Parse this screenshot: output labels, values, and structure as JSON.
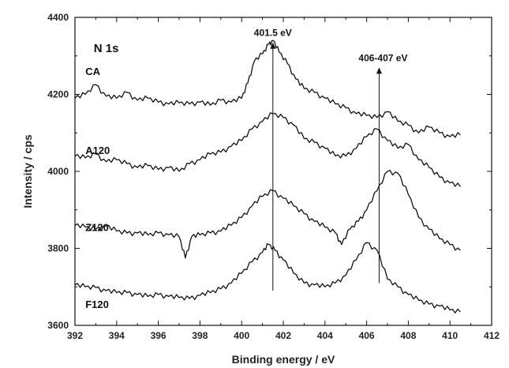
{
  "chart_data": {
    "type": "line",
    "panel_label": "N 1s",
    "xlabel": "Binding energy / eV",
    "ylabel": "Intensity / cps",
    "xlim": [
      392,
      412
    ],
    "ylim": [
      3600,
      4400
    ],
    "xticks": [
      392,
      394,
      396,
      398,
      400,
      402,
      404,
      406,
      408,
      410,
      412
    ],
    "yticks": [
      3600,
      3800,
      4000,
      4200,
      4400
    ],
    "grid": false,
    "line_color": "#111111",
    "annotations": [
      {
        "label": "401.5 eV",
        "x": 401.5,
        "y_from": 3690,
        "y_to": 4335
      },
      {
        "label": "406-407 eV",
        "x": 406.6,
        "y_from": 3710,
        "y_to": 4270
      }
    ],
    "series": [
      {
        "name": "CA",
        "label_pos": [
          392.5,
          4250
        ],
        "x": [
          392.0,
          392.5,
          393.0,
          393.5,
          394.0,
          394.5,
          395.0,
          395.5,
          396.0,
          396.5,
          397.0,
          397.5,
          398.0,
          398.5,
          399.0,
          399.5,
          400.0,
          400.3,
          400.6,
          401.0,
          401.3,
          401.5,
          401.8,
          402.2,
          402.6,
          403.0,
          403.5,
          404.0,
          404.5,
          405.0,
          405.5,
          406.0,
          406.5,
          407.0,
          407.5,
          408.0,
          408.5,
          409.0,
          409.5,
          410.0,
          410.5
        ],
        "y": [
          4190,
          4200,
          4225,
          4195,
          4190,
          4205,
          4185,
          4190,
          4180,
          4175,
          4178,
          4175,
          4180,
          4172,
          4185,
          4180,
          4190,
          4230,
          4285,
          4305,
          4330,
          4340,
          4310,
          4280,
          4240,
          4215,
          4205,
          4190,
          4175,
          4165,
          4150,
          4145,
          4140,
          4155,
          4130,
          4120,
          4100,
          4115,
          4100,
          4090,
          4095
        ]
      },
      {
        "name": "A120",
        "label_pos": [
          392.5,
          4045
        ],
        "x": [
          392.0,
          392.5,
          393.0,
          393.5,
          394.0,
          394.5,
          395.0,
          395.5,
          396.0,
          396.5,
          397.0,
          397.5,
          398.0,
          398.5,
          399.0,
          399.5,
          400.0,
          400.5,
          401.0,
          401.5,
          402.0,
          402.5,
          403.0,
          403.5,
          404.0,
          404.5,
          405.0,
          405.5,
          406.0,
          406.5,
          407.0,
          407.5,
          408.0,
          408.5,
          409.0,
          409.5,
          410.0,
          410.5
        ],
        "y": [
          4040,
          4035,
          4045,
          4025,
          4030,
          4020,
          4010,
          4015,
          4005,
          4010,
          4000,
          4020,
          4030,
          4045,
          4050,
          4065,
          4080,
          4110,
          4130,
          4150,
          4140,
          4120,
          4085,
          4075,
          4060,
          4040,
          4040,
          4060,
          4090,
          4110,
          4080,
          4060,
          4070,
          4030,
          4010,
          3985,
          3970,
          3960
        ]
      },
      {
        "name": "Z120",
        "label_pos": [
          392.5,
          3845
        ],
        "x": [
          392.0,
          392.5,
          393.0,
          393.5,
          394.0,
          394.5,
          395.0,
          395.5,
          396.0,
          396.5,
          397.0,
          397.3,
          397.6,
          398.0,
          398.5,
          399.0,
          399.5,
          400.0,
          400.5,
          401.0,
          401.5,
          402.0,
          402.5,
          403.0,
          403.5,
          404.0,
          404.5,
          404.8,
          405.2,
          405.6,
          406.0,
          406.5,
          407.0,
          407.5,
          408.0,
          408.5,
          409.0,
          409.5,
          410.0,
          410.5
        ],
        "y": [
          3860,
          3855,
          3850,
          3858,
          3845,
          3840,
          3840,
          3835,
          3840,
          3835,
          3830,
          3775,
          3830,
          3835,
          3840,
          3845,
          3860,
          3880,
          3910,
          3935,
          3950,
          3930,
          3910,
          3890,
          3870,
          3855,
          3840,
          3810,
          3850,
          3870,
          3900,
          3950,
          4000,
          3995,
          3940,
          3880,
          3850,
          3825,
          3810,
          3795
        ]
      },
      {
        "name": "F120",
        "label_pos": [
          392.5,
          3645
        ],
        "x": [
          392.0,
          392.5,
          393.0,
          393.5,
          394.0,
          394.5,
          395.0,
          395.5,
          396.0,
          396.5,
          397.0,
          397.5,
          398.0,
          398.5,
          399.0,
          399.5,
          400.0,
          400.5,
          401.0,
          401.3,
          401.6,
          402.0,
          402.5,
          403.0,
          403.5,
          404.0,
          404.5,
          405.0,
          405.5,
          406.0,
          406.5,
          407.0,
          407.5,
          408.0,
          408.5,
          409.0,
          409.5,
          410.0,
          410.5
        ],
        "y": [
          3705,
          3700,
          3698,
          3690,
          3685,
          3685,
          3680,
          3675,
          3680,
          3675,
          3672,
          3670,
          3678,
          3685,
          3695,
          3710,
          3735,
          3765,
          3790,
          3810,
          3795,
          3770,
          3735,
          3710,
          3705,
          3700,
          3710,
          3730,
          3770,
          3815,
          3795,
          3720,
          3700,
          3680,
          3665,
          3655,
          3650,
          3640,
          3635
        ]
      }
    ]
  }
}
